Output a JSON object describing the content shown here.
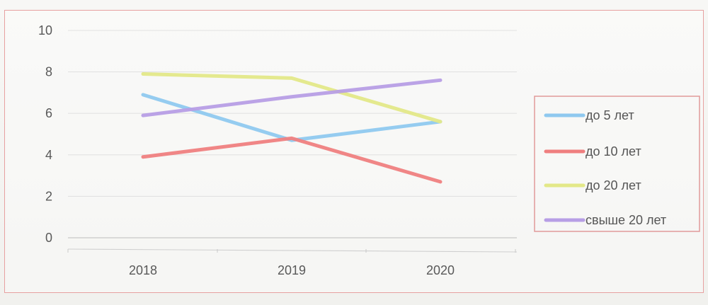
{
  "chart_data": {
    "type": "line",
    "categories": [
      "2018",
      "2019",
      "2020"
    ],
    "ylim": [
      0,
      10
    ],
    "yticks": [
      "0",
      "2",
      "4",
      "6",
      "8",
      "10"
    ],
    "grid": true,
    "legend_position": "right",
    "series": [
      {
        "name": "до 5 лет",
        "values": [
          6.9,
          4.7,
          5.6
        ],
        "color": "#8fc9ef"
      },
      {
        "name": "до 10 лет",
        "values": [
          3.9,
          4.8,
          2.7
        ],
        "color": "#ef7f7f"
      },
      {
        "name": "до 20 лет",
        "values": [
          7.9,
          7.7,
          5.6
        ],
        "color": "#e3e888"
      },
      {
        "name": "свыше 20 лет",
        "values": [
          5.9,
          6.8,
          7.6
        ],
        "color": "#b79ee5"
      }
    ]
  }
}
